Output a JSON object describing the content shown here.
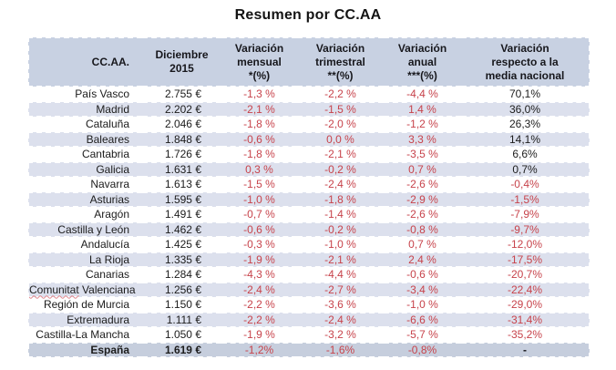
{
  "title": "Resumen por CC.AA",
  "colors": {
    "header_bg": "#c8d1e2",
    "stripe_bg": "#dce0ed",
    "total_bg": "#c6cedd",
    "negative_red": "#c7434b",
    "text": "#1c1c1c"
  },
  "chart_data": {
    "type": "table",
    "title": "Resumen por CC.AA",
    "columns": [
      "CC.AA.",
      "Diciembre\n2015",
      "Variación\nmensual\n*(%)",
      "Variación\ntrimestral\n**(%)",
      "Variación\nanual\n***(%)",
      "Variación\nrespecto a la\nmedia nacional"
    ],
    "rows": [
      {
        "ccaa": "País Vasco",
        "diciembre_2015": "2.755 €",
        "var_mensual": "-1,3 %",
        "var_trimestral": "-2,2 %",
        "var_anual": "-4,4 %",
        "var_media_nacional": "70,1%"
      },
      {
        "ccaa": "Madrid",
        "diciembre_2015": "2.202 €",
        "var_mensual": "-2,1 %",
        "var_trimestral": "-1,5 %",
        "var_anual": "1,4 %",
        "var_media_nacional": "36,0%"
      },
      {
        "ccaa": "Cataluña",
        "diciembre_2015": "2.046 €",
        "var_mensual": "-1,8 %",
        "var_trimestral": "-2,0 %",
        "var_anual": "-1,2 %",
        "var_media_nacional": "26,3%"
      },
      {
        "ccaa": "Baleares",
        "diciembre_2015": "1.848 €",
        "var_mensual": "-0,6 %",
        "var_trimestral": "0,0 %",
        "var_anual": "3,3 %",
        "var_media_nacional": "14,1%"
      },
      {
        "ccaa": "Cantabria",
        "diciembre_2015": "1.726 €",
        "var_mensual": "-1,8 %",
        "var_trimestral": "-2,1 %",
        "var_anual": "-3,5 %",
        "var_media_nacional": "6,6%"
      },
      {
        "ccaa": "Galicia",
        "diciembre_2015": "1.631 €",
        "var_mensual": "0,3 %",
        "var_trimestral": "-0,2 %",
        "var_anual": "0,7 %",
        "var_media_nacional": "0,7%"
      },
      {
        "ccaa": "Navarra",
        "diciembre_2015": "1.613 €",
        "var_mensual": "-1,5 %",
        "var_trimestral": "-2,4 %",
        "var_anual": "-2,6 %",
        "var_media_nacional": "-0,4%"
      },
      {
        "ccaa": "Asturias",
        "diciembre_2015": "1.595 €",
        "var_mensual": "-1,0 %",
        "var_trimestral": "-1,8 %",
        "var_anual": "-2,9 %",
        "var_media_nacional": "-1,5%"
      },
      {
        "ccaa": "Aragón",
        "diciembre_2015": "1.491 €",
        "var_mensual": "-0,7 %",
        "var_trimestral": "-1,4 %",
        "var_anual": "-2,6 %",
        "var_media_nacional": "-7,9%"
      },
      {
        "ccaa": "Castilla y León",
        "diciembre_2015": "1.462 €",
        "var_mensual": "-0,6 %",
        "var_trimestral": "-0,2 %",
        "var_anual": "-0,8 %",
        "var_media_nacional": "-9,7%"
      },
      {
        "ccaa": "Andalucía",
        "diciembre_2015": "1.425 €",
        "var_mensual": "-0,3 %",
        "var_trimestral": "-1,0 %",
        "var_anual": "0,7 %",
        "var_media_nacional": "-12,0%"
      },
      {
        "ccaa": "La Rioja",
        "diciembre_2015": "1.335 €",
        "var_mensual": "-1,9 %",
        "var_trimestral": "-2,1 %",
        "var_anual": "2,4 %",
        "var_media_nacional": "-17,5%"
      },
      {
        "ccaa": "Canarias",
        "diciembre_2015": "1.284 €",
        "var_mensual": "-4,3 %",
        "var_trimestral": "-4,4 %",
        "var_anual": "-0,6 %",
        "var_media_nacional": "-20,7%"
      },
      {
        "ccaa": "Comunitat Valenciana",
        "diciembre_2015": "1.256 €",
        "var_mensual": "-2,4 %",
        "var_trimestral": "-2,7 %",
        "var_anual": "-3,4 %",
        "var_media_nacional": "-22,4%",
        "squiggle_word": "Comunitat"
      },
      {
        "ccaa": "Región de Murcia",
        "diciembre_2015": "1.150 €",
        "var_mensual": "-2,2 %",
        "var_trimestral": "-3,6 %",
        "var_anual": "-1,0 %",
        "var_media_nacional": "-29,0%"
      },
      {
        "ccaa": "Extremadura",
        "diciembre_2015": "1.111 €",
        "var_mensual": "-2,2 %",
        "var_trimestral": "-2,4 %",
        "var_anual": "-6,6 %",
        "var_media_nacional": "-31,4%"
      },
      {
        "ccaa": "Castilla-La Mancha",
        "diciembre_2015": "1.050 €",
        "var_mensual": "-1,9 %",
        "var_trimestral": "-3,2 %",
        "var_anual": "-5,7 %",
        "var_media_nacional": "-35,2%"
      },
      {
        "ccaa": "España",
        "diciembre_2015": "1.619 €",
        "var_mensual": "-1,2%",
        "var_trimestral": "-1,6%",
        "var_anual": "-0,8%",
        "var_media_nacional": "-",
        "total": true
      }
    ]
  }
}
